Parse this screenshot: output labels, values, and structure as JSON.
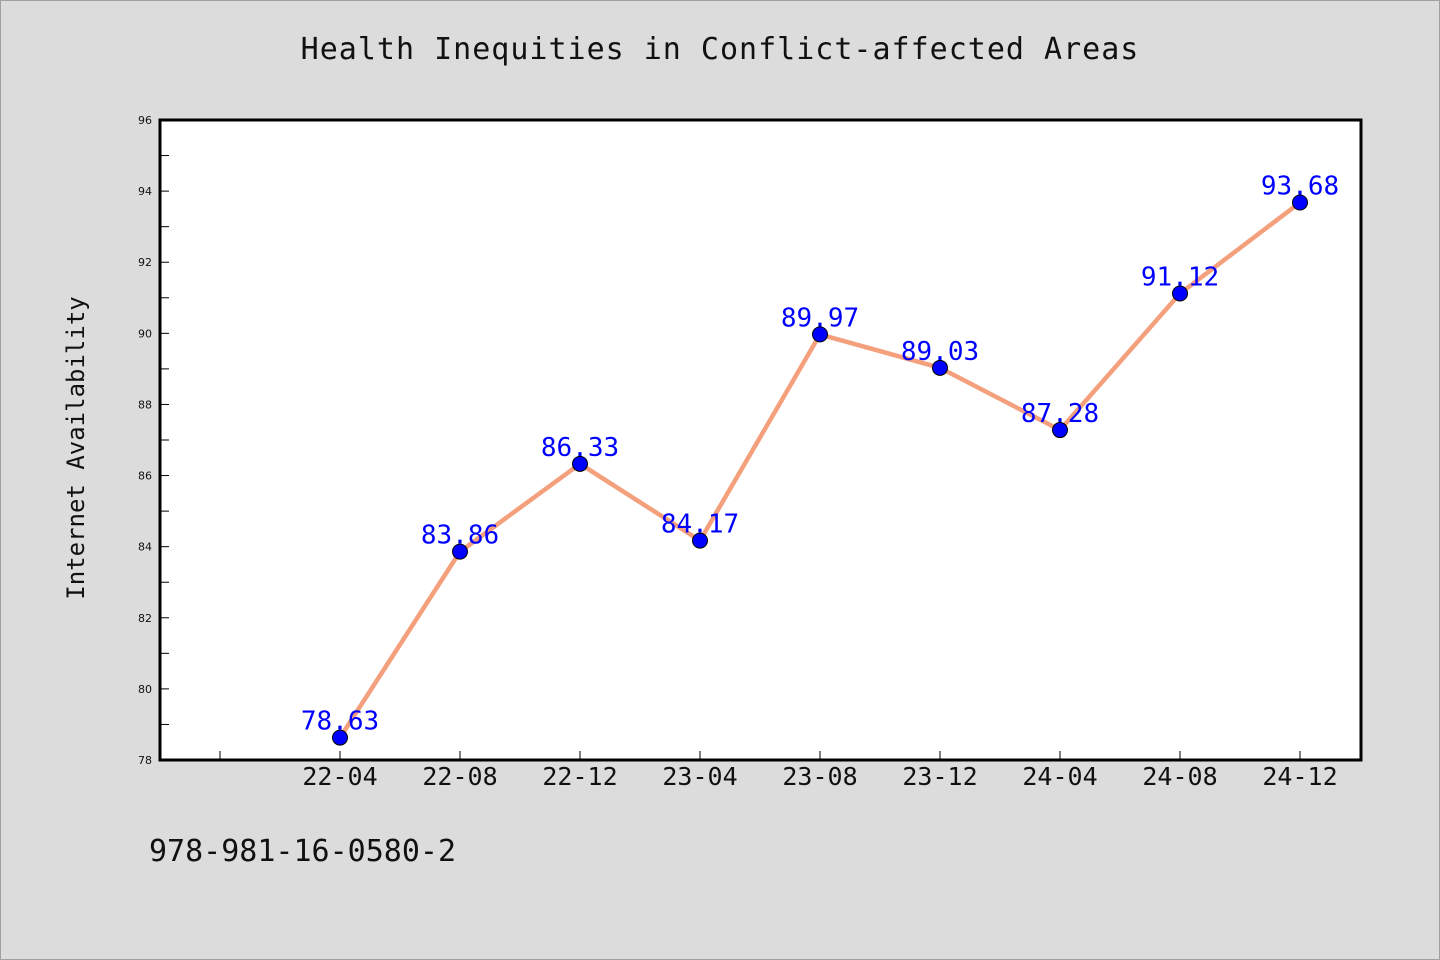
{
  "chart_data": {
    "type": "line",
    "title": "Health Inequities in Conflict-affected Areas",
    "xlabel": "",
    "ylabel": "Internet Availability",
    "categories": [
      "22-04",
      "22-08",
      "22-12",
      "23-04",
      "23-08",
      "23-12",
      "24-04",
      "24-08",
      "24-12"
    ],
    "series": [
      {
        "values": [
          78.63,
          83.86,
          86.33,
          84.17,
          89.97,
          89.03,
          87.28,
          91.12,
          93.68
        ],
        "labels": [
          "78.63",
          "83.86",
          "86.33",
          "84.17",
          "89.97",
          "89.03",
          "87.28",
          "91.12",
          "93.68"
        ]
      }
    ],
    "ylim": [
      78,
      96
    ],
    "yticks": [
      78,
      80,
      82,
      84,
      86,
      88,
      90,
      92,
      94,
      96
    ],
    "ytick_labels": [
      "78",
      "80",
      "82",
      "84",
      "86",
      "88",
      "90",
      "92",
      "94",
      "96"
    ],
    "grid": false,
    "line_color": "#f4a07c",
    "marker_color": "#0000ff",
    "label_color": "#0000ff",
    "plot_background": "#ffffff",
    "figure_background": "#dcdcdc"
  },
  "footer": {
    "note": "978-981-16-0580-2"
  }
}
